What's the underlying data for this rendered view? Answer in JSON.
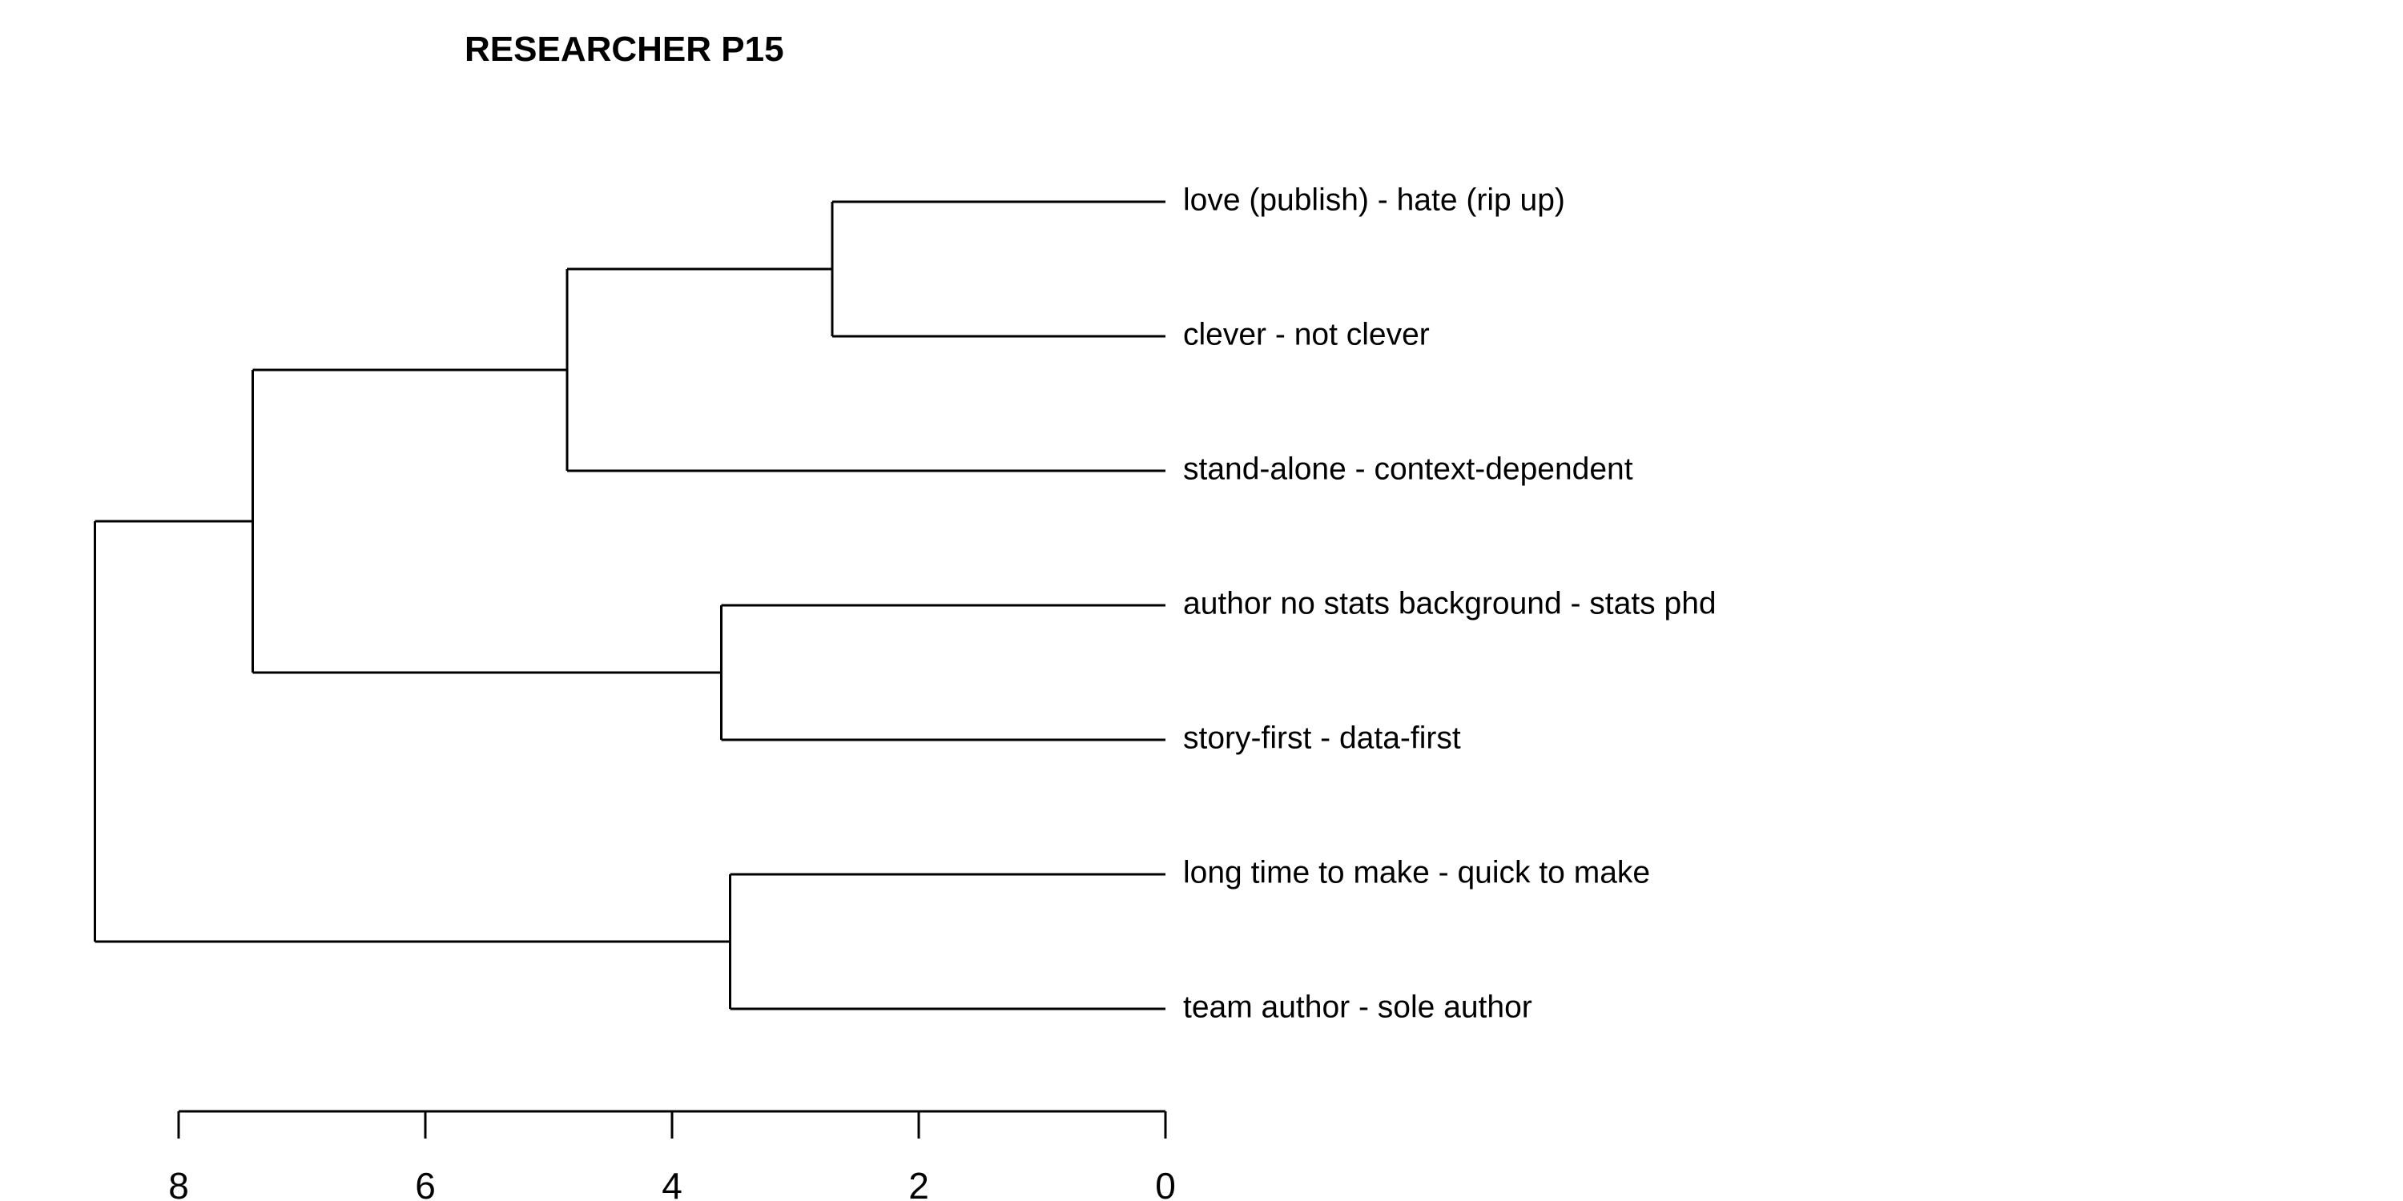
{
  "colors": {
    "background": "#ffffff",
    "line": "#000000",
    "text": "#000000"
  },
  "chart_data": {
    "type": "dendrogram",
    "title": "RESEARCHER P15",
    "orientation": "leaves-right",
    "xlim": [
      8.5,
      0
    ],
    "ticks": [
      "8",
      "6",
      "4",
      "2",
      "0"
    ],
    "tick_values": [
      8,
      6,
      4,
      2,
      0
    ],
    "leaves": [
      "love (publish) - hate (rip up)",
      "clever - not clever",
      "stand-alone - context-dependent",
      "author no stats background - stats phd",
      "story-first - data-first",
      "long time to make - quick to make",
      "team author - sole author"
    ],
    "merges": [
      {
        "id": "m1",
        "height": 2.7,
        "children": [
          "L0",
          "L1"
        ]
      },
      {
        "id": "m2",
        "height": 4.85,
        "children": [
          "m1",
          "L2"
        ]
      },
      {
        "id": "m3",
        "height": 3.6,
        "children": [
          "L3",
          "L4"
        ]
      },
      {
        "id": "m4",
        "height": 7.4,
        "children": [
          "m2",
          "m3"
        ]
      },
      {
        "id": "m5",
        "height": 3.53,
        "children": [
          "L5",
          "L6"
        ]
      },
      {
        "id": "m6",
        "height": 8.68,
        "children": [
          "m4",
          "m5"
        ]
      }
    ]
  }
}
